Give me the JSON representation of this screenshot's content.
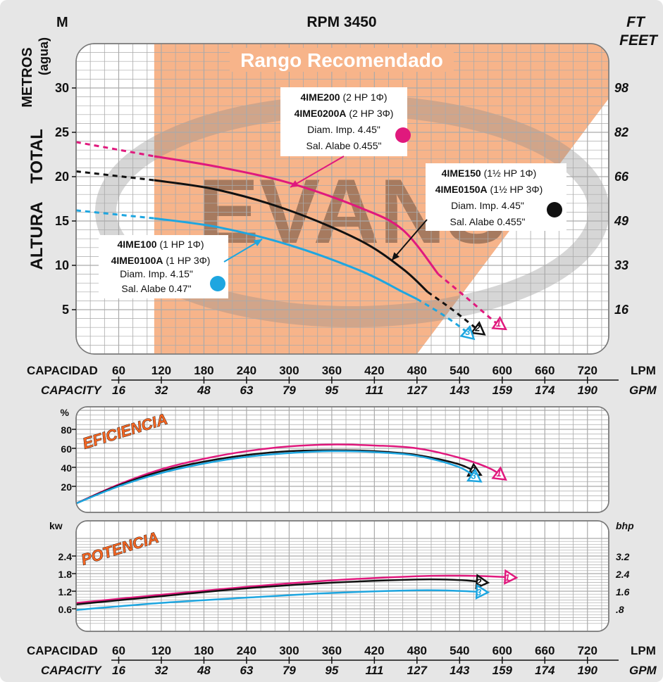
{
  "header": {
    "title": "RPM 3450",
    "left_unit": "M",
    "right_unit_1": "FT",
    "right_unit_2": "FEET",
    "left_axis_label_1": "METROS",
    "left_axis_label_2": "(agua)",
    "left_axis_label_3": "ALTURA",
    "left_axis_label_4": "TOTAL"
  },
  "recommended_range": {
    "label": "Rango Recomendado",
    "from_lpm": 110,
    "to_lpm": 480
  },
  "axis": {
    "lpm_title": "CAPACIDAD",
    "lpm_unit": "LPM",
    "gpm_title": "CAPACITY",
    "gpm_unit": "GPM",
    "lpm_ticks": [
      "60",
      "120",
      "180",
      "240",
      "300",
      "360",
      "420",
      "480",
      "540",
      "600",
      "660",
      "720"
    ],
    "gpm_ticks": [
      "16",
      "32",
      "48",
      "63",
      "79",
      "95",
      "111",
      "127",
      "143",
      "159",
      "174",
      "190"
    ]
  },
  "watermark": "EVANS",
  "annotations": {
    "pump1": {
      "model_a": "4IME200",
      "spec_a": "(2 HP 1Φ)",
      "model_b": "4IME0200A",
      "spec_b": "(2 HP 3Φ)",
      "diam": "Diam. Imp. 4.45\"",
      "alabe": "Sal. Alabe 0.455\""
    },
    "pump2": {
      "model_a": "4IME150",
      "spec_a": "(1½ HP 1Φ)",
      "model_b": "4IME0150A",
      "spec_b": "(1½ HP 3Φ)",
      "diam": "Diam. Imp. 4.45\"",
      "alabe": "Sal. Alabe 0.455\""
    },
    "pump3": {
      "model_a": "4IME100",
      "spec_a": "(1 HP 1Φ)",
      "model_b": "4IME0100A",
      "spec_b": "(1 HP 3Φ)",
      "diam": "Diam. Imp. 4.15\"",
      "alabe": "Sal. Alabe 0.47\""
    }
  },
  "colors": {
    "pump1": "#e0197d",
    "pump2": "#111111",
    "pump3": "#1ea6e0",
    "range": "#f7b48a",
    "grid": "#9a9a9a"
  },
  "panels": {
    "efficiency_label": "EFICIENCIA",
    "efficiency_unit": "%",
    "power_label": "POTENCIA",
    "power_unit_left": "kw",
    "power_unit_right": "bhp"
  },
  "chart_data": [
    {
      "type": "line",
      "title": "RPM 3450",
      "xlabel": "CAPACIDAD (LPM)",
      "ylabel": "ALTURA TOTAL (M)",
      "xlim": [
        0,
        750
      ],
      "ylim": [
        0,
        35
      ],
      "y_ticks": [
        "5",
        "10",
        "15",
        "20",
        "25",
        "30"
      ],
      "y_right_ticks": [
        "16",
        "33",
        "49",
        "66",
        "82",
        "98"
      ],
      "series": [
        {
          "name": "1",
          "x": [
            0,
            110,
            200,
            300,
            400,
            460,
            510,
            555,
            590,
            605
          ],
          "y": [
            23.9,
            22.3,
            21.1,
            19.3,
            16.5,
            14.0,
            9.0,
            6.0,
            3.6,
            2.8
          ]
        },
        {
          "name": "2",
          "x": [
            0,
            110,
            200,
            300,
            400,
            460,
            495,
            530,
            560,
            575
          ],
          "y": [
            20.6,
            19.6,
            18.5,
            16.2,
            12.8,
            9.6,
            7.0,
            5.0,
            3.1,
            2.2
          ]
        },
        {
          "name": "3",
          "x": [
            0,
            110,
            200,
            300,
            400,
            460,
            480,
            515,
            545,
            560
          ],
          "y": [
            16.2,
            15.3,
            14.3,
            12.3,
            9.4,
            7.0,
            6.2,
            4.5,
            2.8,
            1.7
          ]
        }
      ]
    },
    {
      "type": "line",
      "title": "EFICIENCIA",
      "xlabel": "CAPACIDAD (LPM)",
      "ylabel": "%",
      "xlim": [
        0,
        750
      ],
      "ylim": [
        0,
        100
      ],
      "y_ticks": [
        "20",
        "40",
        "60",
        "80"
      ],
      "series": [
        {
          "name": "1",
          "x": [
            0,
            60,
            120,
            180,
            240,
            300,
            360,
            420,
            480,
            540,
            585,
            605
          ],
          "y": [
            2,
            22,
            38,
            49,
            57,
            62,
            64,
            63,
            60,
            50,
            38,
            27
          ]
        },
        {
          "name": "2",
          "x": [
            0,
            60,
            120,
            180,
            240,
            300,
            360,
            420,
            480,
            540,
            570
          ],
          "y": [
            2,
            21,
            36,
            46,
            53,
            57,
            58,
            57,
            53,
            43,
            32
          ]
        },
        {
          "name": "3",
          "x": [
            0,
            60,
            120,
            180,
            240,
            300,
            360,
            420,
            480,
            540,
            570
          ],
          "y": [
            2,
            20,
            34,
            44,
            51,
            55,
            57,
            56,
            52,
            40,
            25
          ]
        }
      ]
    },
    {
      "type": "line",
      "title": "POTENCIA",
      "xlabel": "CAPACIDAD (LPM)",
      "ylabel": "kw",
      "xlim": [
        0,
        750
      ],
      "ylim": [
        0,
        3.0
      ],
      "y_ticks": [
        "0.6",
        "1.2",
        "1.8",
        "2.4"
      ],
      "y_right_ticks": [
        ".8",
        "1.6",
        "2.4",
        "3.2"
      ],
      "series": [
        {
          "name": "1",
          "x": [
            0,
            120,
            240,
            360,
            480,
            540,
            600,
            620
          ],
          "y": [
            0.8,
            1.08,
            1.35,
            1.57,
            1.71,
            1.73,
            1.69,
            1.66
          ]
        },
        {
          "name": "2",
          "x": [
            0,
            120,
            240,
            360,
            480,
            540,
            580
          ],
          "y": [
            0.75,
            1.03,
            1.3,
            1.49,
            1.6,
            1.58,
            1.49
          ]
        },
        {
          "name": "3",
          "x": [
            0,
            120,
            240,
            360,
            480,
            540,
            580
          ],
          "y": [
            0.56,
            0.8,
            0.98,
            1.14,
            1.23,
            1.21,
            1.16
          ]
        }
      ]
    }
  ]
}
